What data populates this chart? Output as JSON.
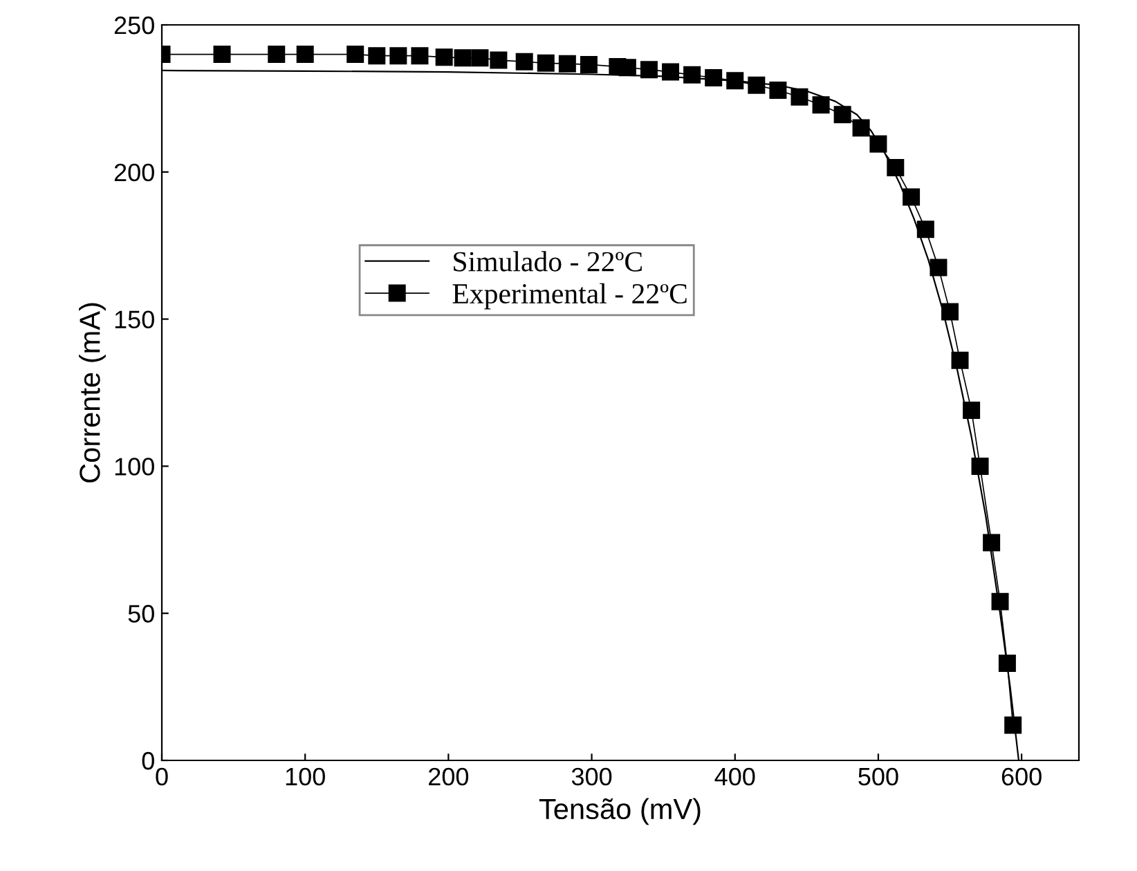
{
  "chart_data": {
    "type": "line",
    "xlabel": "Tensão (mV)",
    "ylabel": "Corrente (mA)",
    "xlim": [
      0,
      640
    ],
    "ylim": [
      0,
      250
    ],
    "xticks": [
      0,
      100,
      200,
      300,
      400,
      500,
      600
    ],
    "yticks": [
      0,
      50,
      100,
      150,
      200,
      250
    ],
    "legend": "top left",
    "grid": false,
    "series": [
      {
        "name": "Simulado - 22ºC",
        "color": "#000000",
        "marker": "none",
        "x": [
          0,
          100,
          200,
          300,
          350,
          400,
          430,
          450,
          470,
          485,
          495,
          505,
          515,
          525,
          535,
          545,
          555,
          565,
          575,
          585,
          592,
          598
        ],
        "values": [
          234.5,
          234.3,
          234,
          233.2,
          232.5,
          231,
          229.5,
          227.5,
          224,
          219.5,
          214,
          206,
          196,
          184,
          170,
          153,
          133,
          110,
          83,
          50,
          25,
          0
        ]
      },
      {
        "name": "Experimental - 22ºC",
        "color": "#000000",
        "marker": "square",
        "x": [
          0,
          42,
          80,
          100,
          135,
          150,
          165,
          180,
          197,
          210,
          222,
          235,
          253,
          268,
          283,
          298,
          318,
          325,
          340,
          355,
          370,
          385,
          400,
          415,
          430,
          445,
          460,
          475,
          488,
          500,
          512,
          523,
          533,
          542,
          550,
          557,
          565,
          571,
          579,
          585,
          590,
          594
        ],
        "values": [
          240,
          240,
          240,
          240,
          240,
          239.5,
          239.5,
          239.5,
          239,
          238.8,
          238.8,
          238,
          237.5,
          237,
          236.8,
          236.5,
          235.8,
          235.5,
          234.8,
          234,
          233,
          232,
          231,
          229.5,
          227.8,
          225.5,
          222.8,
          219.5,
          215,
          209.5,
          201.5,
          191.5,
          180.5,
          167.5,
          152.5,
          136,
          119,
          100,
          74,
          54,
          33,
          12
        ]
      }
    ]
  }
}
